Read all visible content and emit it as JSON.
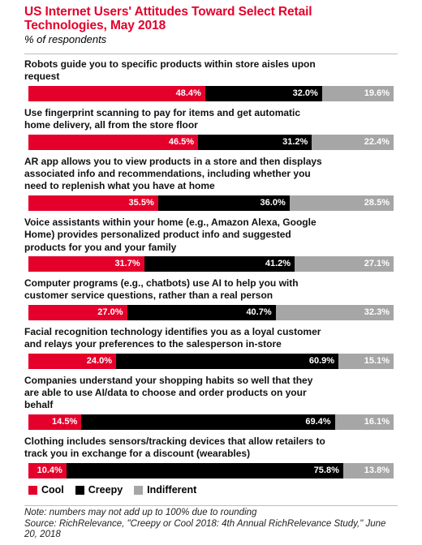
{
  "chart_data": {
    "type": "bar",
    "stacked": true,
    "orientation": "horizontal",
    "title": "US Internet Users' Attitudes Toward Select Retail Technologies, May 2018",
    "subtitle": "% of respondents",
    "unit": "%",
    "xlim": [
      0,
      100
    ],
    "categories": [
      "Robots guide you to specific products within store aisles upon request",
      "Use fingerprint scanning to pay for items and get automatic home delivery, all from the store floor",
      "AR app allows you to view products in a store and then displays associated info and recommendations, including whether you need to replenish what you have at home",
      "Voice assistants within your home (e.g., Amazon Alexa, Google Home) provides personalized product info and suggested products for you and your family",
      "Computer programs (e.g., chatbots) use AI to help you with customer service questions, rather than a real person",
      "Facial recognition technology identifies you as a loyal customer and relays your preferences to the salesperson in-store",
      "Companies understand your shopping habits so well that they are able to use AI/data to choose and order products on your behalf",
      "Clothing includes sensors/tracking devices that allow retailers to track you in exchange for a discount (wearables)"
    ],
    "series": [
      {
        "name": "Cool",
        "color": "#e4002b",
        "values": [
          48.4,
          46.5,
          35.5,
          31.7,
          27.0,
          24.0,
          14.5,
          10.4
        ]
      },
      {
        "name": "Creepy",
        "color": "#000000",
        "values": [
          32.0,
          31.2,
          36.0,
          41.2,
          40.7,
          60.9,
          69.4,
          75.8
        ]
      },
      {
        "name": "Indifferent",
        "color": "#a6a6a6",
        "values": [
          19.6,
          22.4,
          28.5,
          27.1,
          32.3,
          15.1,
          16.1,
          13.8
        ]
      }
    ],
    "legend_position": "bottom-left",
    "grid": false
  },
  "labels_display": [
    "Robots guide you to specific products within store aisles upon\nrequest",
    "Use fingerprint scanning to pay for items and get automatic\nhome delivery, all from the store floor",
    "AR app allows you to view products in a store and then displays\nassociated info and recommendations, including whether you\nneed to replenish what you have at home",
    "Voice assistants within your home (e.g., Amazon Alexa, Google\nHome) provides personalized product info and suggested\nproducts for you and your family",
    "Computer programs (e.g., chatbots) use AI to help you with\ncustomer service questions, rather than a real person",
    "Facial recognition technology identifies you as a loyal customer\nand relays your preferences to the salesperson in-store",
    "Companies understand your shopping habits so well that they\nare able to use AI/data to choose and order products on your\nbehalf",
    "Clothing includes sensors/tracking devices that allow retailers to\ntrack you in exchange for a discount (wearables)"
  ],
  "note": "Note: numbers may not add up to 100% due to rounding\nSource: RichRelevance, \"Creepy or Cool 2018: 4th Annual RichRelevance Study,\" June 20, 2018"
}
